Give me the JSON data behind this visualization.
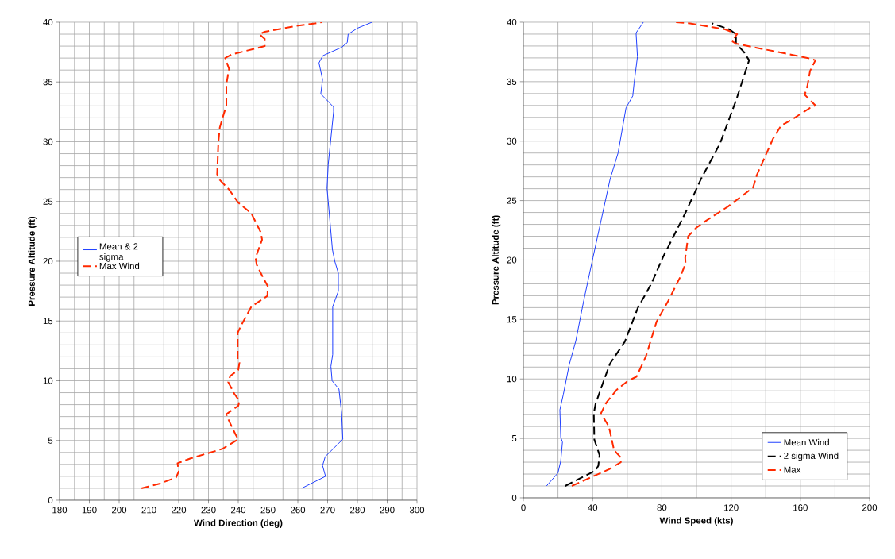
{
  "chart_data": [
    {
      "type": "line",
      "xlabel": "Wind Direction (deg)",
      "ylabel": "Pressure Altitude (ft)",
      "xlim": [
        180,
        300
      ],
      "ylim": [
        0,
        40
      ],
      "xticks": [
        180,
        190,
        200,
        210,
        220,
        230,
        240,
        250,
        260,
        270,
        280,
        290,
        300
      ],
      "yticks": [
        0,
        5,
        10,
        15,
        20,
        25,
        30,
        35,
        40
      ],
      "grid": true,
      "legend": "left",
      "series": [
        {
          "name": "Mean & 2 sigma",
          "color": "#1f3fff",
          "line_style": "solid",
          "x": [
            261.3,
            269.3,
            268.3,
            269.2,
            275.1,
            274.7,
            273.8,
            271.5,
            271.1,
            271.7,
            271.7,
            273.6,
            273.6,
            272.4,
            271.6,
            270.2,
            269.8,
            270.2,
            272.0,
            272.0,
            269.3,
            267.7,
            268.3,
            267.1,
            268.4,
            274.7,
            276.6,
            276.9,
            280.0,
            284.9
          ],
          "values": [
            1.0,
            2.0,
            2.9,
            3.65,
            5.1,
            7.3,
            9.3,
            10.0,
            11.2,
            12.2,
            16.2,
            17.5,
            19.0,
            20.0,
            21.0,
            25.0,
            26.1,
            28.1,
            32.5,
            32.9,
            33.6,
            34.0,
            35.2,
            36.6,
            37.2,
            37.9,
            38.3,
            39.0,
            39.5,
            40.0
          ]
        },
        {
          "name": "Max Wind",
          "color": "#ff2a00",
          "line_style": "dashed",
          "x": [
            207.5,
            213.8,
            219.1,
            220.0,
            219.6,
            224.0,
            234.7,
            240.0,
            239.1,
            236.4,
            236.0,
            240.0,
            240.4,
            238.7,
            236.6,
            237.3,
            240.0,
            240.4,
            239.8,
            239.8,
            240.9,
            244.4,
            249.8,
            249.9,
            248.4,
            246.2,
            245.8,
            248.0,
            247.6,
            244.4,
            240.0,
            236.9,
            233.8,
            232.9,
            233.3,
            233.8,
            235.1,
            236.0,
            236.0,
            236.9,
            235.6,
            237.8,
            248.9,
            248.9,
            247.1,
            248.9,
            259.6,
            265.8,
            268.0
          ],
          "values": [
            1.0,
            1.4,
            1.9,
            2.4,
            3.1,
            3.5,
            4.3,
            5.1,
            5.5,
            6.9,
            7.2,
            7.9,
            8.3,
            8.9,
            9.9,
            10.4,
            10.9,
            11.5,
            11.8,
            14.0,
            14.6,
            16.2,
            17.1,
            17.9,
            18.6,
            19.7,
            20.3,
            21.8,
            22.4,
            24.0,
            24.9,
            26.0,
            26.8,
            27.2,
            29.9,
            31.2,
            32.3,
            33.0,
            34.8,
            36.1,
            37.0,
            37.3,
            38.0,
            38.6,
            39.0,
            39.2,
            39.7,
            39.9,
            40.0
          ]
        }
      ]
    },
    {
      "type": "line",
      "xlabel": "Wind Speed (kts)",
      "ylabel": "Pressure Altitude (ft)",
      "xlim": [
        0,
        200
      ],
      "ylim": [
        0,
        40
      ],
      "xticks": [
        0,
        40,
        80,
        120,
        160,
        200
      ],
      "yticks": [
        0,
        5,
        10,
        15,
        20,
        25,
        30,
        35,
        40
      ],
      "grid": true,
      "legend": "bottom right",
      "series": [
        {
          "name": "Mean Wind",
          "color": "#1f3fff",
          "line_style": "solid",
          "x": [
            13.4,
            20.0,
            21.6,
            22.6,
            21.6,
            21.1,
            23.1,
            26.5,
            30.3,
            34.9,
            40.2,
            50.1,
            54.7,
            59.3,
            63.2,
            63.9,
            65.9,
            65.1,
            69.3
          ],
          "values": [
            1.0,
            2.1,
            3.1,
            4.7,
            5.1,
            7.4,
            8.7,
            11.2,
            13.2,
            16.6,
            20.2,
            26.8,
            29.0,
            32.8,
            33.8,
            34.8,
            37.1,
            39.1,
            40.0
          ]
        },
        {
          "name": "2 sigma Wind",
          "color": "#000000",
          "line_style": "dashed",
          "x": [
            24.2,
            41.7,
            43.3,
            44.0,
            41.0,
            40.7,
            41.7,
            46.3,
            50.1,
            58.5,
            66.2,
            73.9,
            80.5,
            93.7,
            102.9,
            113.6,
            122.8,
            130.4,
            127.4,
            122.8,
            122.8,
            119.0,
            109.1
          ],
          "values": [
            1.0,
            2.3,
            2.7,
            3.6,
            4.9,
            7.1,
            7.9,
            9.8,
            11.3,
            13.1,
            16.0,
            18.0,
            20.2,
            24.0,
            26.9,
            29.8,
            33.4,
            36.8,
            37.5,
            38.2,
            39.0,
            39.4,
            39.9
          ]
        },
        {
          "name": "Max",
          "color": "#ff2a00",
          "line_style": "dashed",
          "x": [
            28.0,
            40.2,
            49.4,
            56.3,
            56.3,
            52.4,
            49.4,
            44.8,
            47.9,
            54.0,
            60.1,
            65.4,
            70.8,
            76.9,
            83.8,
            90.7,
            93.7,
            93.5,
            95.2,
            99.8,
            104.4,
            118.2,
            132.7,
            135.0,
            139.6,
            144.2,
            148.8,
            155.0,
            165.6,
            168.7,
            162.5,
            164.0,
            165.6,
            168.7,
            164.0,
            122.8,
            120.5,
            123.5,
            116.6,
            96.3,
            87.6
          ],
          "values": [
            1.0,
            1.8,
            2.4,
            3.0,
            3.4,
            4.0,
            6.0,
            7.1,
            8.0,
            9.1,
            9.8,
            10.2,
            11.9,
            14.8,
            16.6,
            18.6,
            19.7,
            20.2,
            22.0,
            22.7,
            23.2,
            24.5,
            26.1,
            27.2,
            28.7,
            30.2,
            31.3,
            31.8,
            32.8,
            33.0,
            33.9,
            34.6,
            35.9,
            36.8,
            37.0,
            38.2,
            38.4,
            39.0,
            39.4,
            39.9,
            40.0
          ]
        }
      ]
    }
  ]
}
